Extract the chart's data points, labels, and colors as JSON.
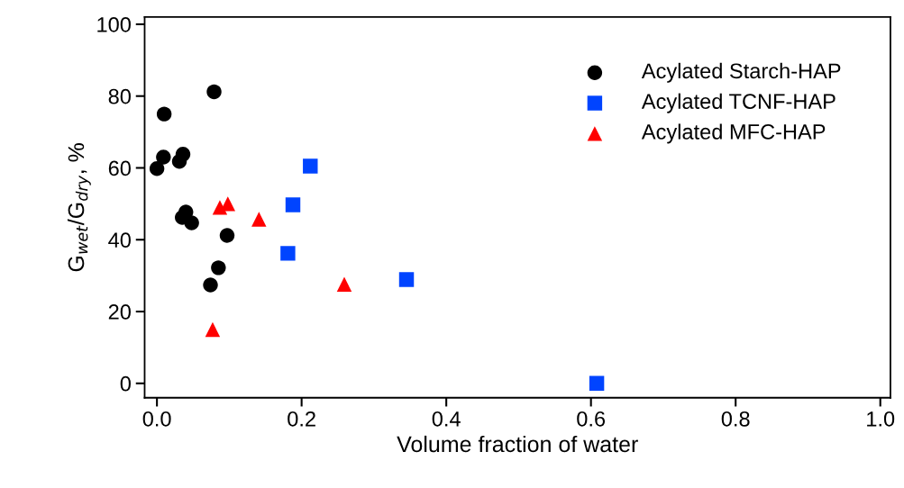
{
  "chart_data": {
    "type": "scatter",
    "xlabel": "Volume fraction of water",
    "ylabel": "G$_{wet}$/G$_{dry}$, %",
    "xlim": [
      -0.017,
      1.014
    ],
    "xticks": [
      {
        "value": 0,
        "label": "0.0"
      },
      0.2,
      0.4,
      0.6,
      0.8,
      {
        "value": 1,
        "label": "1.0"
      }
    ],
    "ylim": [
      -4,
      102
    ],
    "yticks": [
      0,
      20,
      40,
      60,
      80,
      100
    ],
    "grid": false,
    "legend": "top right",
    "series": [
      {
        "name": "Acylated Starch-HAP",
        "color": "#000000",
        "marker": "circle",
        "x": [
          0.0,
          0.009,
          0.01,
          0.031,
          0.036,
          0.035,
          0.04,
          0.048,
          0.079,
          0.085,
          0.097,
          0.074
        ],
        "values": [
          59.8,
          63,
          75,
          61.8,
          63.8,
          46.2,
          47.7,
          44.7,
          81.2,
          32.2,
          41.2,
          27.4
        ]
      },
      {
        "name": "Acylated TCNF-HAP",
        "color": "#0044ff",
        "marker": "square",
        "x": [
          0.212,
          0.188,
          0.181,
          0.345,
          0.608
        ],
        "values": [
          60.5,
          49.7,
          36.2,
          28.9,
          0
        ]
      },
      {
        "name": "Acylated MFC-HAP",
        "color": "#ff0000",
        "marker": "triangle",
        "x": [
          0.087,
          0.098,
          0.141,
          0.259,
          0.077
        ],
        "values": [
          49,
          50,
          45.7,
          27.6,
          15
        ]
      }
    ]
  }
}
